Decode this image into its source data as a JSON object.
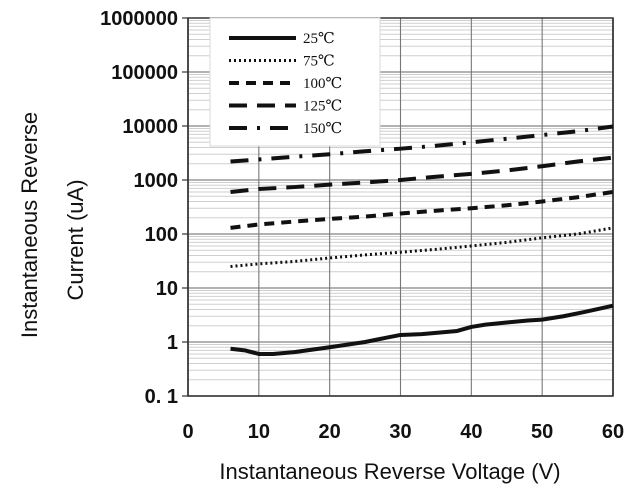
{
  "chart_data": {
    "type": "line",
    "title": "",
    "xlabel": "Instantaneous Reverse Voltage (V)",
    "ylabel_lines": [
      "Instantaneous Reverse",
      "Current (uA)"
    ],
    "x_scale": "linear",
    "y_scale": "log",
    "xlim": [
      0,
      60
    ],
    "ylim": [
      0.1,
      1000000
    ],
    "x_ticks": [
      0,
      10,
      20,
      30,
      40,
      50,
      60
    ],
    "x_tick_labels": [
      "0",
      "10",
      "20",
      "30",
      "40",
      "50",
      "60"
    ],
    "y_ticks": [
      0.1,
      1,
      10,
      100,
      1000,
      10000,
      100000,
      1000000
    ],
    "y_tick_labels": [
      "0. 1",
      "1",
      "10",
      "100",
      "1000",
      "10000",
      "100000",
      "1000000"
    ],
    "grid": true,
    "legend_position": "top-left",
    "series": [
      {
        "name": "25℃",
        "style": "solid",
        "points": [
          [
            6,
            0.75
          ],
          [
            8,
            0.7
          ],
          [
            10,
            0.6
          ],
          [
            12,
            0.6
          ],
          [
            15,
            0.65
          ],
          [
            20,
            0.8
          ],
          [
            25,
            1.0
          ],
          [
            28,
            1.2
          ],
          [
            30,
            1.35
          ],
          [
            33,
            1.4
          ],
          [
            38,
            1.6
          ],
          [
            40,
            1.9
          ],
          [
            42,
            2.1
          ],
          [
            45,
            2.3
          ],
          [
            48,
            2.5
          ],
          [
            50,
            2.6
          ],
          [
            53,
            3.0
          ],
          [
            56,
            3.6
          ],
          [
            60,
            4.7
          ]
        ]
      },
      {
        "name": "75℃",
        "style": "dotted",
        "points": [
          [
            6,
            25
          ],
          [
            10,
            28
          ],
          [
            15,
            31
          ],
          [
            20,
            36
          ],
          [
            25,
            41
          ],
          [
            30,
            46
          ],
          [
            35,
            52
          ],
          [
            40,
            60
          ],
          [
            45,
            70
          ],
          [
            50,
            85
          ],
          [
            55,
            100
          ],
          [
            60,
            130
          ]
        ]
      },
      {
        "name": "100℃",
        "style": "dashed",
        "points": [
          [
            6,
            130
          ],
          [
            10,
            150
          ],
          [
            15,
            170
          ],
          [
            20,
            190
          ],
          [
            25,
            210
          ],
          [
            30,
            240
          ],
          [
            35,
            270
          ],
          [
            40,
            300
          ],
          [
            45,
            340
          ],
          [
            50,
            400
          ],
          [
            55,
            480
          ],
          [
            60,
            600
          ]
        ]
      },
      {
        "name": "125℃",
        "style": "longdash",
        "points": [
          [
            6,
            600
          ],
          [
            10,
            680
          ],
          [
            15,
            740
          ],
          [
            20,
            820
          ],
          [
            25,
            900
          ],
          [
            30,
            1000
          ],
          [
            35,
            1150
          ],
          [
            40,
            1300
          ],
          [
            45,
            1500
          ],
          [
            50,
            1800
          ],
          [
            55,
            2200
          ],
          [
            60,
            2600
          ]
        ]
      },
      {
        "name": "150℃",
        "style": "dashdot",
        "points": [
          [
            6,
            2200
          ],
          [
            10,
            2400
          ],
          [
            15,
            2700
          ],
          [
            20,
            3000
          ],
          [
            25,
            3400
          ],
          [
            30,
            3800
          ],
          [
            35,
            4300
          ],
          [
            40,
            5000
          ],
          [
            45,
            5800
          ],
          [
            50,
            6800
          ],
          [
            55,
            8000
          ],
          [
            60,
            9800
          ]
        ]
      }
    ]
  }
}
